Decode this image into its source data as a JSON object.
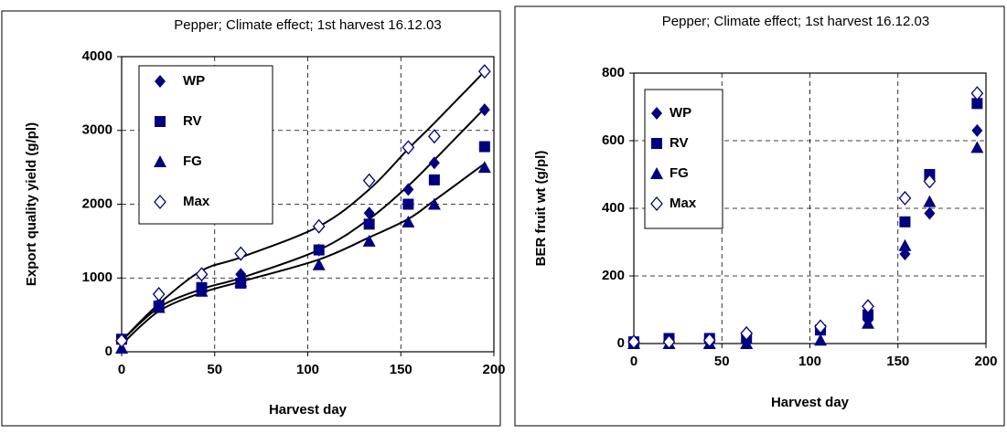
{
  "chart_data": [
    {
      "type": "scatter",
      "title": "Pepper; Climate effect; 1st harvest 16.12.03",
      "x_label": "Harvest day",
      "y_label": "Export quality yield (g/pl)",
      "x": [
        0,
        20,
        43,
        64,
        106,
        133,
        154,
        168,
        195
      ],
      "xlim": [
        0,
        200
      ],
      "xticks": [
        0,
        50,
        100,
        150,
        200
      ],
      "ylim": [
        0,
        4000
      ],
      "yticks": [
        0,
        1000,
        2000,
        3000,
        4000
      ],
      "grid": true,
      "series": [
        {
          "name": "WP",
          "color": "#000080",
          "marker": "diamond",
          "values": [
            150,
            650,
            870,
            1050,
            1380,
            1880,
            2200,
            2560,
            3280
          ]
        },
        {
          "name": "RV",
          "color": "#000080",
          "marker": "square",
          "values": [
            170,
            620,
            870,
            930,
            1380,
            1730,
            2000,
            2330,
            2780
          ]
        },
        {
          "name": "FG",
          "color": "#000080",
          "marker": "triangle",
          "values": [
            50,
            600,
            820,
            950,
            1180,
            1500,
            1760,
            2000,
            2500
          ]
        },
        {
          "name": "Max",
          "color": "#000080",
          "marker": "open-diamond",
          "values": [
            150,
            780,
            1050,
            1330,
            1700,
            2320,
            2770,
            2920,
            3800
          ]
        }
      ],
      "curves": [
        {
          "color": "#000000",
          "values": [
            150,
            650,
            1100,
            1280,
            1700,
            2200,
            2750,
            3100,
            3800
          ]
        },
        {
          "color": "#000000",
          "values": [
            150,
            600,
            850,
            1000,
            1380,
            1800,
            2250,
            2600,
            3300
          ]
        },
        {
          "color": "#000000",
          "values": [
            100,
            550,
            800,
            950,
            1250,
            1550,
            1800,
            2050,
            2550
          ]
        }
      ]
    },
    {
      "type": "scatter",
      "title": "Pepper; Climate effect; 1st harvest 16.12.03",
      "x_label": "Harvest day",
      "y_label": "BER fruit wt (g/pl)",
      "x": [
        0,
        20,
        43,
        64,
        106,
        133,
        154,
        168,
        195
      ],
      "xlim": [
        0,
        200
      ],
      "xticks": [
        0,
        50,
        100,
        150,
        200
      ],
      "ylim": [
        0,
        800
      ],
      "yticks": [
        0,
        200,
        400,
        600,
        800
      ],
      "grid": true,
      "series": [
        {
          "name": "WP",
          "color": "#000080",
          "marker": "diamond",
          "values": [
            5,
            5,
            5,
            5,
            40,
            70,
            265,
            385,
            630
          ]
        },
        {
          "name": "RV",
          "color": "#000080",
          "marker": "square",
          "values": [
            5,
            15,
            15,
            15,
            40,
            85,
            360,
            500,
            710
          ]
        },
        {
          "name": "FG",
          "color": "#000080",
          "marker": "triangle",
          "values": [
            0,
            0,
            0,
            0,
            10,
            60,
            290,
            420,
            580
          ]
        },
        {
          "name": "Max",
          "color": "#000080",
          "marker": "open-diamond",
          "values": [
            5,
            5,
            10,
            30,
            50,
            110,
            430,
            480,
            740
          ]
        }
      ]
    }
  ]
}
